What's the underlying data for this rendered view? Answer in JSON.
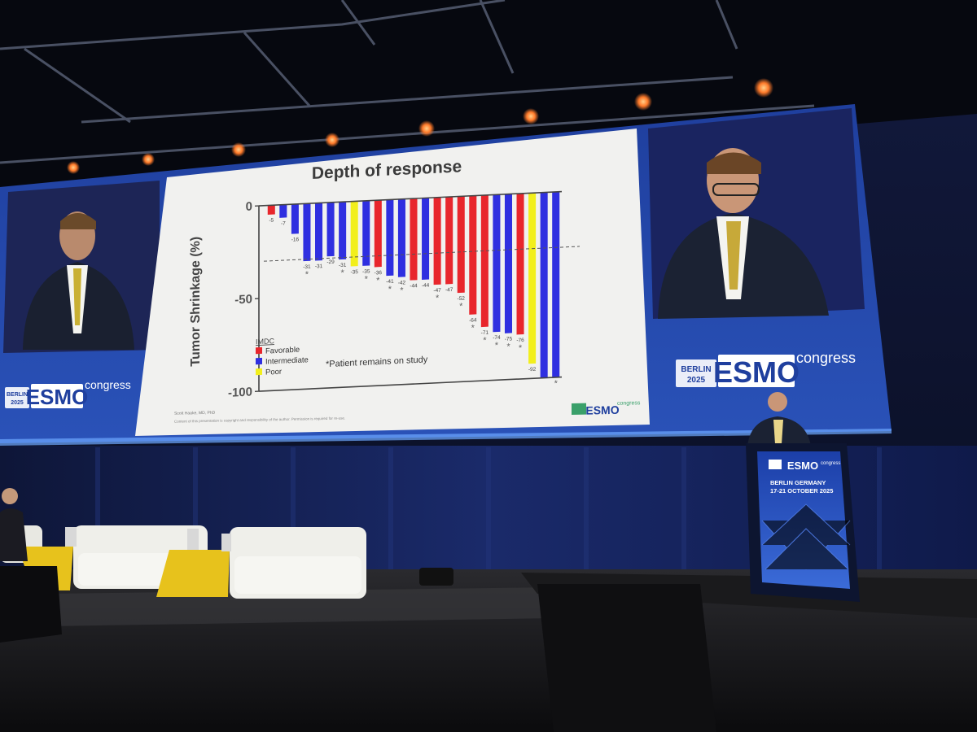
{
  "branding": {
    "city_year": [
      "BERLIN",
      "2025"
    ],
    "brand": "ESMO",
    "suffix": "congress"
  },
  "podium": {
    "location": "BERLIN GERMANY",
    "dates": "17-21 OCTOBER 2025"
  },
  "slide": {
    "presenter": "Scott Haake, MD, PhD",
    "copyright": "Content of this presentation is copyright and responsibility of the author. Permission is required for re-use.",
    "footnote": "*Patient remains on study"
  },
  "colors": {
    "favorable": "#e8262c",
    "intermediate": "#2f2fe0",
    "poor": "#f2ef1c",
    "slide_bg": "#f1f1ef"
  },
  "chart_data": {
    "type": "bar",
    "title": "Depth of response",
    "ylabel": "Tumor Shrinkage (%)",
    "xlabel": "",
    "ylim": [
      -100,
      0
    ],
    "yticks": [
      0,
      -50,
      -100
    ],
    "reference_line": -30,
    "legend": {
      "title": "IMDC",
      "placement": "bottom-left",
      "entries": [
        {
          "label": "Favorable",
          "group": "favorable"
        },
        {
          "label": "Intermediate",
          "group": "intermediate"
        },
        {
          "label": "Poor",
          "group": "poor"
        }
      ]
    },
    "values": [
      -5,
      -7,
      -16,
      -31,
      -31,
      -29,
      -31,
      -35,
      -35,
      -36,
      -41,
      -42,
      -44,
      -44,
      -47,
      -47,
      -52,
      -64,
      -71,
      -74,
      -75,
      -76,
      -92,
      -100,
      -100
    ],
    "groups": [
      "favorable",
      "intermediate",
      "intermediate",
      "intermediate",
      "intermediate",
      "intermediate",
      "intermediate",
      "poor",
      "intermediate",
      "favorable",
      "intermediate",
      "intermediate",
      "favorable",
      "intermediate",
      "favorable",
      "favorable",
      "favorable",
      "favorable",
      "favorable",
      "intermediate",
      "intermediate",
      "favorable",
      "poor",
      "intermediate",
      "intermediate"
    ],
    "data_labels": [
      "-5",
      "-7",
      "-16",
      "-31",
      "-31",
      "-29",
      "-31",
      "-35",
      "-35",
      "-36",
      "-41",
      "-42",
      "-44",
      "-44",
      "-47",
      "-47",
      "-52",
      "-64",
      "-71",
      "-74",
      "-75",
      "-76",
      "-92",
      "",
      ""
    ],
    "on_study": [
      false,
      false,
      false,
      true,
      false,
      false,
      true,
      false,
      true,
      true,
      true,
      true,
      false,
      false,
      true,
      false,
      true,
      true,
      true,
      true,
      true,
      true,
      false,
      false,
      true
    ]
  }
}
